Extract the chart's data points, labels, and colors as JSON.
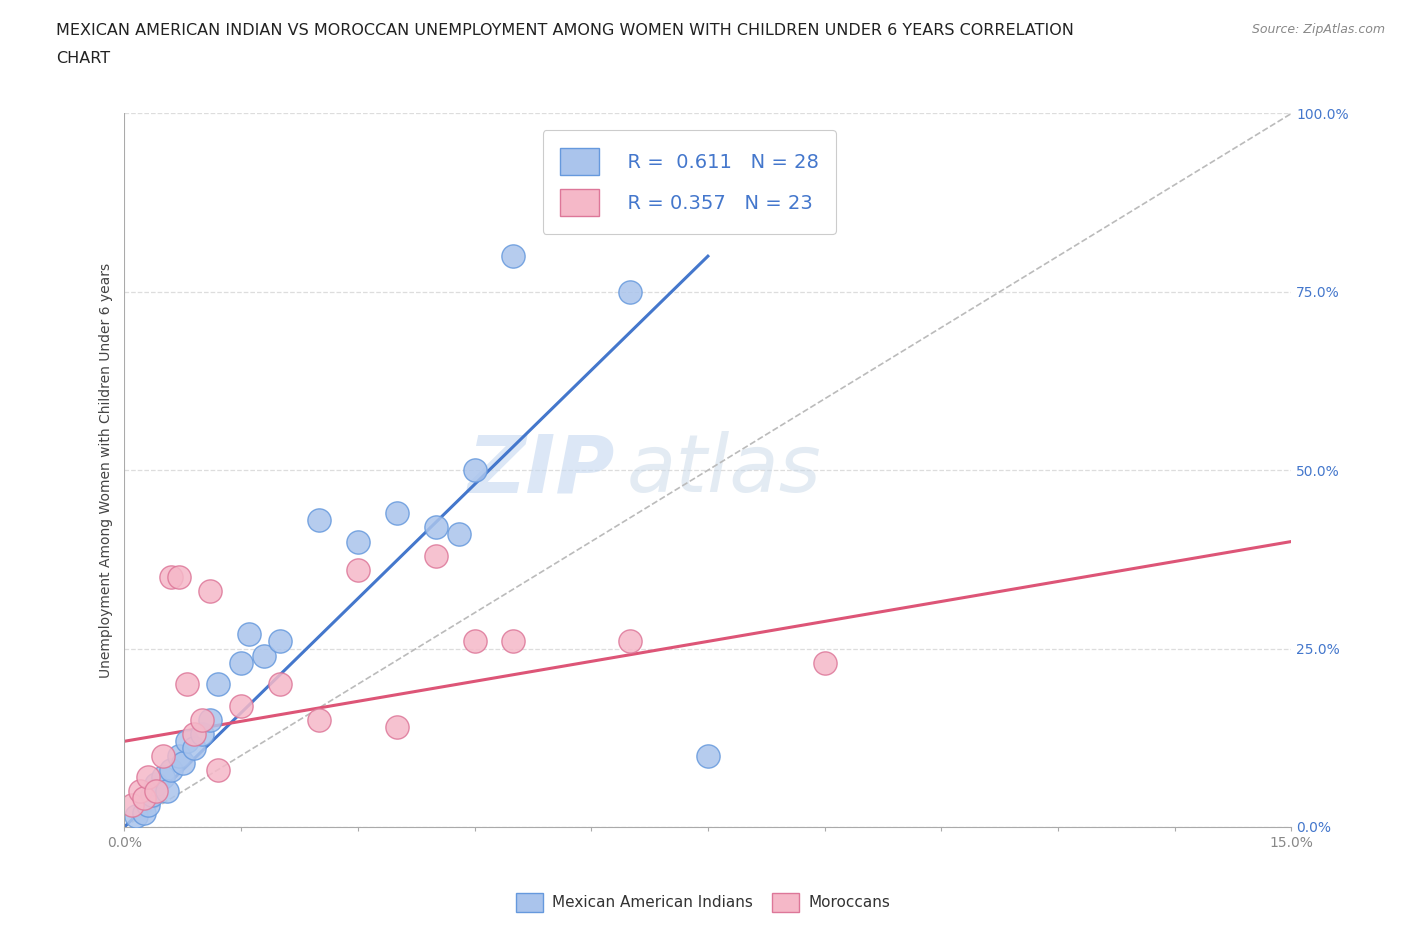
{
  "title_line1": "MEXICAN AMERICAN INDIAN VS MOROCCAN UNEMPLOYMENT AMONG WOMEN WITH CHILDREN UNDER 6 YEARS CORRELATION",
  "title_line2": "CHART",
  "source": "Source: ZipAtlas.com",
  "ylabel": "Unemployment Among Women with Children Under 6 years",
  "xlim": [
    0.0,
    15.0
  ],
  "ylim": [
    0.0,
    100.0
  ],
  "yticks": [
    0.0,
    25.0,
    50.0,
    75.0,
    100.0
  ],
  "xticks": [
    0.0,
    1.5,
    3.0,
    4.5,
    6.0,
    7.5,
    9.0,
    10.5,
    12.0,
    13.5,
    15.0
  ],
  "blue_color": "#aac4ec",
  "blue_edge": "#6699dd",
  "pink_color": "#f5b8c8",
  "pink_edge": "#dd7799",
  "R_blue": "0.611",
  "N_blue": "28",
  "R_pink": "0.357",
  "N_pink": "23",
  "legend_label_blue": "Mexican American Indians",
  "legend_label_pink": "Moroccans",
  "watermark_zip": "ZIP",
  "watermark_atlas": "atlas",
  "blue_scatter_x": [
    0.15,
    0.25,
    0.3,
    0.35,
    0.4,
    0.5,
    0.55,
    0.6,
    0.7,
    0.75,
    0.8,
    0.9,
    1.0,
    1.1,
    1.2,
    1.5,
    1.6,
    1.8,
    2.0,
    2.5,
    3.0,
    3.5,
    4.0,
    4.3,
    4.5,
    5.0,
    6.5,
    7.5
  ],
  "blue_scatter_y": [
    1.5,
    2.0,
    3.0,
    4.5,
    6.0,
    7.0,
    5.0,
    8.0,
    10.0,
    9.0,
    12.0,
    11.0,
    13.0,
    15.0,
    20.0,
    23.0,
    27.0,
    24.0,
    26.0,
    43.0,
    40.0,
    44.0,
    42.0,
    41.0,
    50.0,
    80.0,
    75.0,
    10.0
  ],
  "pink_scatter_x": [
    0.1,
    0.2,
    0.25,
    0.3,
    0.4,
    0.5,
    0.6,
    0.7,
    0.8,
    0.9,
    1.0,
    1.1,
    1.5,
    2.0,
    2.5,
    3.0,
    3.5,
    4.0,
    4.5,
    5.0,
    6.5,
    9.0,
    1.2
  ],
  "pink_scatter_y": [
    3.0,
    5.0,
    4.0,
    7.0,
    5.0,
    10.0,
    35.0,
    35.0,
    20.0,
    13.0,
    15.0,
    33.0,
    17.0,
    20.0,
    15.0,
    36.0,
    14.0,
    38.0,
    26.0,
    26.0,
    26.0,
    23.0,
    8.0
  ],
  "blue_line_x": [
    0.0,
    7.5
  ],
  "blue_line_y": [
    0.0,
    80.0
  ],
  "pink_line_x": [
    0.0,
    15.0
  ],
  "pink_line_y": [
    12.0,
    40.0
  ],
  "diag_line_x": [
    0.0,
    15.0
  ],
  "diag_line_y": [
    0.0,
    100.0
  ],
  "blue_line_color": "#4477cc",
  "pink_line_color": "#dd5577",
  "diag_line_color": "#bbbbbb",
  "grid_color": "#dddddd",
  "ytick_color": "#4477cc",
  "xtick_color": "#888888",
  "title_color": "#222222",
  "source_color": "#888888",
  "ylabel_color": "#444444"
}
